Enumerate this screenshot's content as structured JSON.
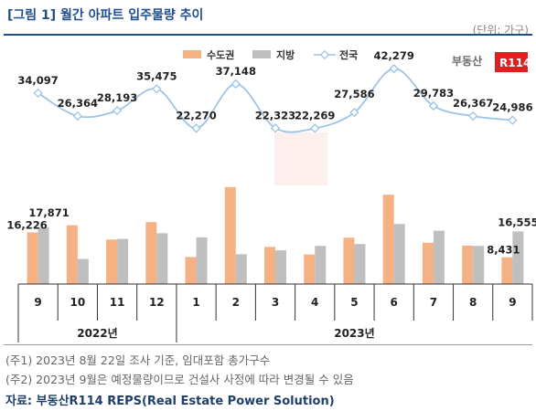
{
  "figure": {
    "title": "[그림 1] 월간 아파트 입주물량 추이",
    "unit": "(단위: 가구)",
    "watermark": "부동산R114",
    "notes": [
      "(주1) 2023년 8월 22일 조사 기준, 임대포함 총가구수",
      "(주2) 2023년 9월은 예정물량이므로 건설사 사정에 따라 변경될 수 있음"
    ],
    "source": "자료: 부동산R114 REPS(Real Estate Power Solution)"
  },
  "chart_data": {
    "type": "bar",
    "categories": [
      "9",
      "10",
      "11",
      "12",
      "1",
      "2",
      "3",
      "4",
      "5",
      "6",
      "7",
      "8",
      "9"
    ],
    "year_groups": [
      {
        "label": "2022년",
        "count": 4
      },
      {
        "label": "2023년",
        "count": 9
      }
    ],
    "series": [
      {
        "name": "수도권",
        "type": "bar",
        "color": "#f4b183",
        "values": [
          16226,
          18500,
          14000,
          19500,
          8500,
          30500,
          11700,
          9300,
          14600,
          28100,
          13000,
          12100,
          8431
        ]
      },
      {
        "name": "지방",
        "type": "bar",
        "color": "#bfbfbf",
        "values": [
          17871,
          7900,
          14200,
          16000,
          14700,
          9400,
          10600,
          12000,
          12600,
          18900,
          16800,
          12000,
          16555
        ]
      },
      {
        "name": "전국",
        "type": "line",
        "color": "#9dc3e6",
        "values": [
          34097,
          26364,
          28193,
          35475,
          22270,
          37148,
          22323,
          22269,
          27586,
          42279,
          29783,
          26367,
          24986
        ]
      }
    ],
    "data_labels": {
      "수도권": {
        "0": "16,226",
        "12": "8,431"
      },
      "지방": {
        "0": "17,871",
        "12": "16,555"
      },
      "전국": [
        "34,097",
        "26,364",
        "28,193",
        "35,475",
        "22,270",
        "37,148",
        "22,323",
        "22,269",
        "27,586",
        "42,279",
        "29,783",
        "26,367",
        "24,986"
      ]
    },
    "legend_position": "top-center",
    "ylim_bars": [
      0,
      75000
    ],
    "ylim_line": [
      -30000,
      50000
    ],
    "grid": false
  }
}
